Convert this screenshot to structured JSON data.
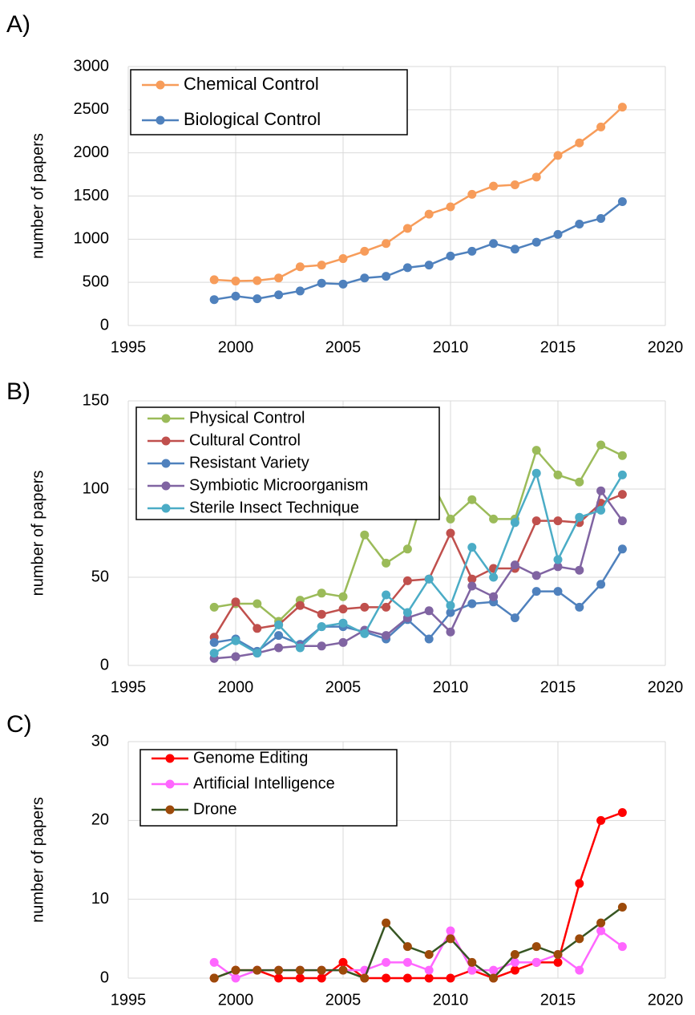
{
  "chart_data": [
    {
      "type": "line",
      "label": "A)",
      "ylabel": "number of papers",
      "x": [
        1999,
        2000,
        2001,
        2002,
        2003,
        2004,
        2005,
        2006,
        2007,
        2008,
        2009,
        2010,
        2011,
        2012,
        2013,
        2014,
        2015,
        2016,
        2017,
        2018
      ],
      "xlim": [
        1995,
        2020
      ],
      "xticks": [
        1995,
        2000,
        2005,
        2010,
        2015,
        2020
      ],
      "ylim": [
        0,
        3000
      ],
      "yticks": [
        0,
        500,
        1000,
        1500,
        2000,
        2500,
        3000
      ],
      "grid": true,
      "legend": "upper left",
      "series": [
        {
          "name": "Chemical Control",
          "color": "#f79c5a",
          "values": [
            530,
            515,
            520,
            550,
            680,
            700,
            775,
            860,
            950,
            1125,
            1290,
            1375,
            1520,
            1615,
            1630,
            1720,
            1970,
            2115,
            2300,
            2530
          ]
        },
        {
          "name": "Biological Control",
          "color": "#4f81bd",
          "values": [
            300,
            340,
            310,
            355,
            400,
            490,
            480,
            550,
            570,
            670,
            700,
            805,
            860,
            950,
            885,
            965,
            1055,
            1175,
            1240,
            1435
          ]
        }
      ]
    },
    {
      "type": "line",
      "label": "B)",
      "ylabel": "number of papers",
      "x": [
        1999,
        2000,
        2001,
        2002,
        2003,
        2004,
        2005,
        2006,
        2007,
        2008,
        2009,
        2010,
        2011,
        2012,
        2013,
        2014,
        2015,
        2016,
        2017,
        2018
      ],
      "xlim": [
        1995,
        2020
      ],
      "xticks": [
        1995,
        2000,
        2005,
        2010,
        2015,
        2020
      ],
      "ylim": [
        0,
        150
      ],
      "yticks": [
        0,
        50,
        100,
        150
      ],
      "grid": true,
      "legend": "upper left",
      "series": [
        {
          "name": "Physical Control",
          "color": "#9bbb59",
          "values": [
            33,
            35,
            35,
            25,
            37,
            41,
            39,
            74,
            58,
            66,
            107,
            83,
            94,
            83,
            83,
            122,
            108,
            104,
            125,
            119
          ]
        },
        {
          "name": "Cultural Control",
          "color": "#c0504d",
          "values": [
            16,
            36,
            21,
            23,
            34,
            29,
            32,
            33,
            33,
            48,
            49,
            75,
            49,
            55,
            55,
            82,
            82,
            81,
            92,
            97
          ]
        },
        {
          "name": "Resistant Variety",
          "color": "#4f81bd",
          "values": [
            13,
            15,
            8,
            17,
            12,
            22,
            22,
            19,
            15,
            26,
            15,
            30,
            35,
            36,
            27,
            42,
            42,
            33,
            46,
            66
          ]
        },
        {
          "name": "Symbiotic Microorganism",
          "color": "#8064a2",
          "values": [
            4,
            5,
            7,
            10,
            11,
            11,
            13,
            20,
            17,
            27,
            31,
            19,
            45,
            39,
            57,
            51,
            56,
            54,
            99,
            82
          ]
        },
        {
          "name": "Sterile Insect Technique",
          "color": "#4bacc6",
          "values": [
            7,
            14,
            7,
            23,
            10,
            22,
            24,
            18,
            40,
            30,
            49,
            34,
            67,
            50,
            81,
            109,
            60,
            84,
            88,
            108
          ]
        }
      ]
    },
    {
      "type": "line",
      "label": "C)",
      "ylabel": "number of papers",
      "x": [
        1999,
        2000,
        2001,
        2002,
        2003,
        2004,
        2005,
        2006,
        2007,
        2008,
        2009,
        2010,
        2011,
        2012,
        2013,
        2014,
        2015,
        2016,
        2017,
        2018
      ],
      "xlim": [
        1995,
        2020
      ],
      "xticks": [
        1995,
        2000,
        2005,
        2010,
        2015,
        2020
      ],
      "ylim": [
        0,
        30
      ],
      "yticks": [
        0,
        10,
        20,
        30
      ],
      "grid": true,
      "legend": "upper left",
      "series": [
        {
          "name": "Genome Editing",
          "color": "#ff0000",
          "values": [
            0,
            1,
            1,
            0,
            0,
            0,
            2,
            0,
            0,
            0,
            0,
            0,
            1,
            0,
            1,
            2,
            2,
            12,
            20,
            21
          ]
        },
        {
          "name": "Artificial Intelligence",
          "color": "#ff66ff",
          "values": [
            2,
            0,
            1,
            1,
            1,
            1,
            1,
            1,
            2,
            2,
            1,
            6,
            1,
            1,
            2,
            2,
            3,
            1,
            6,
            4
          ]
        },
        {
          "name": "Drone",
          "color": "#375623",
          "marker_color": "#9c4a0a",
          "values": [
            0,
            1,
            1,
            1,
            1,
            1,
            1,
            0,
            7,
            4,
            3,
            5,
            2,
            0,
            3,
            4,
            3,
            5,
            7,
            9
          ]
        }
      ]
    }
  ]
}
